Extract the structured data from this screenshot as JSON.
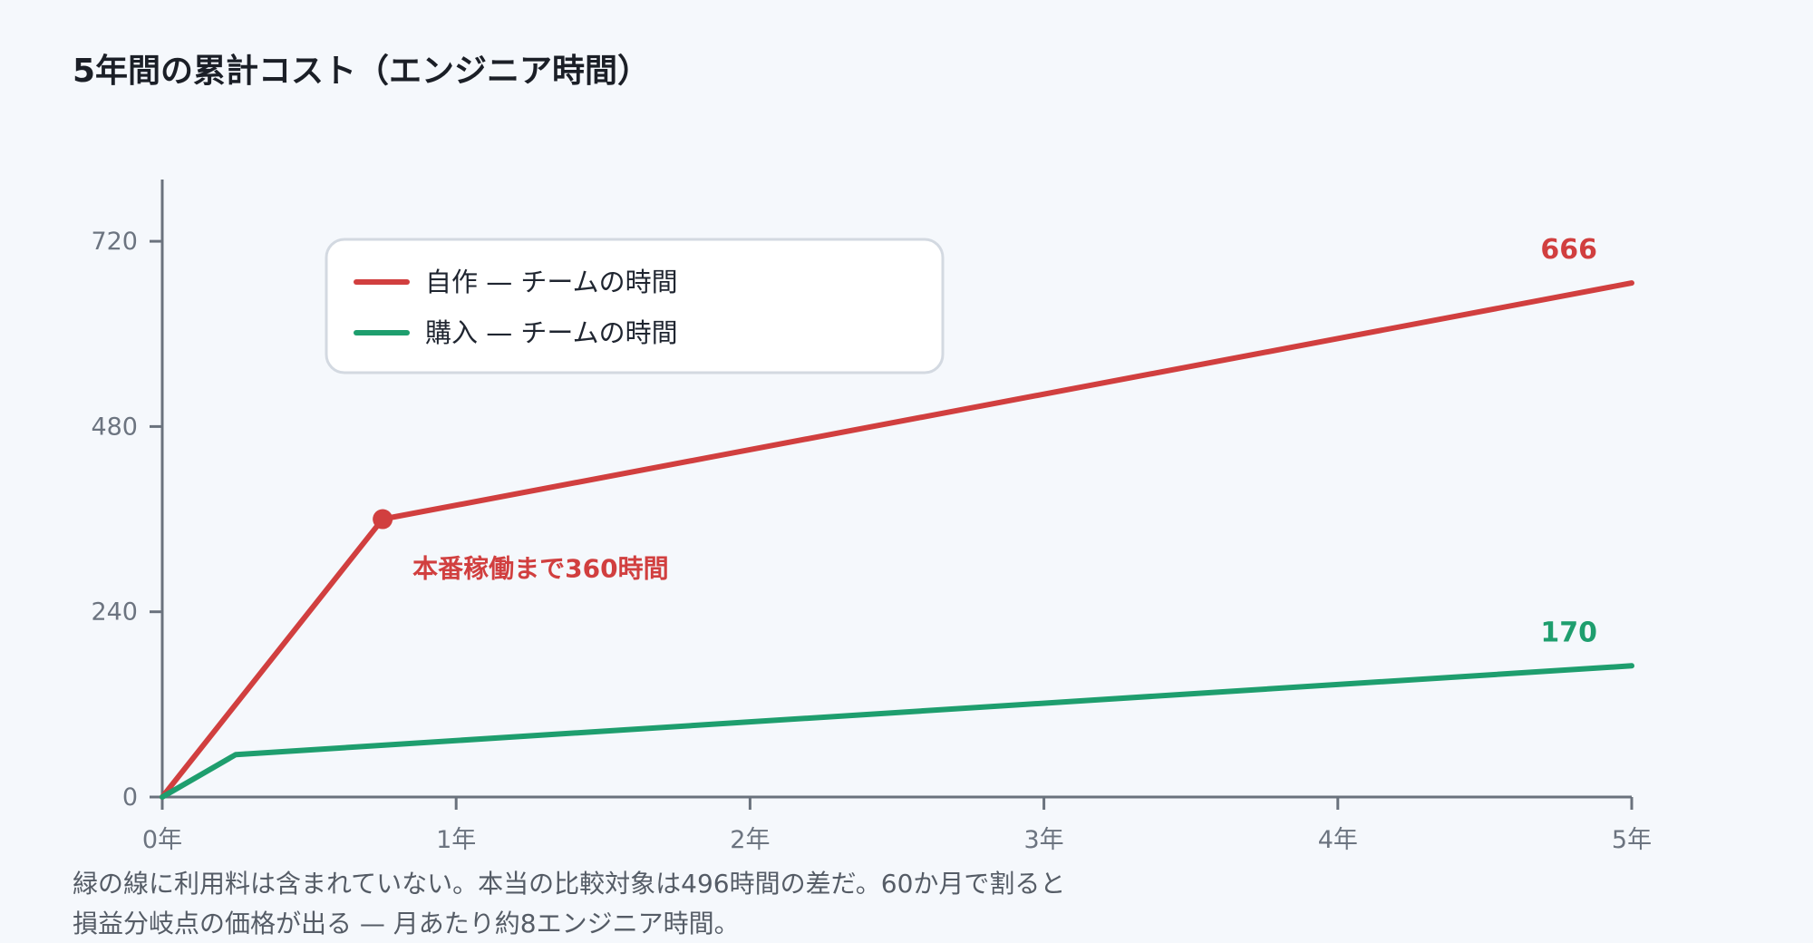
{
  "chart_data": {
    "type": "line",
    "title": "5年間の累計コスト（エンジニア時間）",
    "xlabel": "",
    "ylabel": "",
    "xlim": [
      0,
      5
    ],
    "ylim": [
      0,
      800
    ],
    "x_ticks": [
      {
        "value": 0,
        "label": "0年"
      },
      {
        "value": 1,
        "label": "1年"
      },
      {
        "value": 2,
        "label": "2年"
      },
      {
        "value": 3,
        "label": "3年"
      },
      {
        "value": 4,
        "label": "4年"
      },
      {
        "value": 5,
        "label": "5年"
      }
    ],
    "y_ticks": [
      {
        "value": 0,
        "label": "0"
      },
      {
        "value": 240,
        "label": "240"
      },
      {
        "value": 480,
        "label": "480"
      },
      {
        "value": 720,
        "label": "720"
      }
    ],
    "grid": false,
    "legend_position": "top-left",
    "series": [
      {
        "name": "自作 — チームの時間",
        "color": "#d13f3f",
        "points": [
          [
            0,
            0
          ],
          [
            0.75,
            360
          ],
          [
            5,
            666
          ]
        ],
        "end_label": "666"
      },
      {
        "name": "購入 — チームの時間",
        "color": "#1e9e6e",
        "points": [
          [
            0,
            0
          ],
          [
            0.25,
            55
          ],
          [
            5,
            170
          ]
        ],
        "end_label": "170"
      }
    ],
    "annotations": [
      {
        "series": 0,
        "point": [
          0.75,
          360
        ],
        "text": "本番稼働まで360時間",
        "color": "#d13f3f"
      }
    ]
  },
  "footnote": {
    "line1": "緑の線に利用料は含まれていない。本当の比較対象は496時間の差だ。60か月で割ると",
    "line2": "損益分岐点の価格が出る — 月あたり約8エンジニア時間。"
  }
}
